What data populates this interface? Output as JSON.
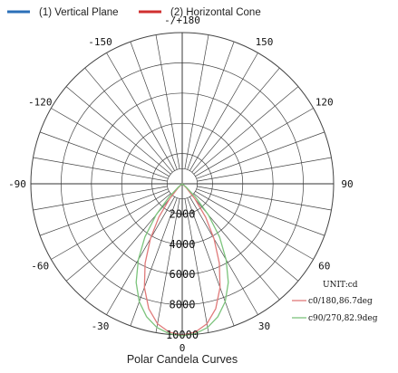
{
  "legend": [
    {
      "label": "(1) Vertical Plane",
      "color": "#2b6fb8"
    },
    {
      "label": "(2) Horizontal Cone",
      "color": "#d03030"
    }
  ],
  "caption": "Polar Candela Curves",
  "chart_data": {
    "type": "polar",
    "angle_labels": [
      {
        "angle": 180,
        "text": "-/+180"
      },
      {
        "angle": -150,
        "text": "-150"
      },
      {
        "angle": 150,
        "text": "150"
      },
      {
        "angle": -120,
        "text": "-120"
      },
      {
        "angle": 120,
        "text": "120"
      },
      {
        "angle": -90,
        "text": "-90"
      },
      {
        "angle": 90,
        "text": "90"
      },
      {
        "angle": -60,
        "text": "-60"
      },
      {
        "angle": 60,
        "text": "60"
      },
      {
        "angle": -30,
        "text": "-30"
      },
      {
        "angle": 30,
        "text": "30"
      },
      {
        "angle": 0,
        "text": "0"
      }
    ],
    "radial_ticks": [
      2000,
      4000,
      6000,
      8000,
      10000
    ],
    "radial_tick_labels": [
      "2000",
      "4000",
      "6000",
      "8000",
      "10000"
    ],
    "r_max": 10000,
    "inner_circle_r": 1000,
    "grid": true,
    "unit_label": "UNIT:cd",
    "series": [
      {
        "name": "c0/180,86.7deg",
        "color": "#e07a7a",
        "points": [
          [
            0,
            10000
          ],
          [
            5,
            9850
          ],
          [
            10,
            9400
          ],
          [
            15,
            8550
          ],
          [
            20,
            7300
          ],
          [
            25,
            5800
          ],
          [
            30,
            4200
          ],
          [
            35,
            2700
          ],
          [
            40,
            1300
          ],
          [
            45,
            400
          ],
          [
            50,
            0
          ]
        ]
      },
      {
        "name": "c90/270,82.9deg",
        "color": "#7cc47c",
        "points": [
          [
            0,
            10050
          ],
          [
            5,
            9950
          ],
          [
            10,
            9650
          ],
          [
            15,
            9100
          ],
          [
            20,
            8300
          ],
          [
            25,
            7200
          ],
          [
            30,
            5800
          ],
          [
            35,
            4300
          ],
          [
            40,
            2700
          ],
          [
            45,
            1200
          ],
          [
            50,
            300
          ],
          [
            55,
            0
          ]
        ]
      }
    ]
  }
}
